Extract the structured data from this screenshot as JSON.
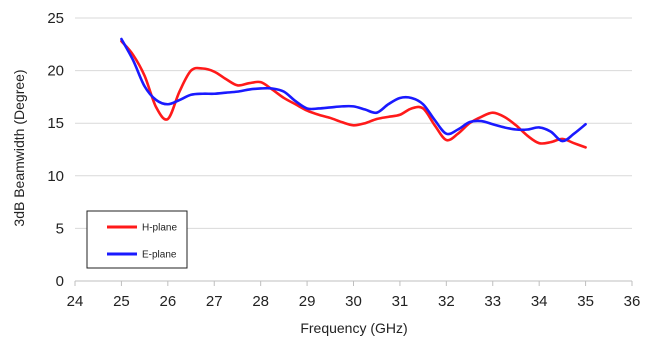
{
  "chart_data": {
    "type": "line",
    "title": "",
    "xlabel": "Frequency (GHz)",
    "ylabel": "3dB Beamwidth (Degree)",
    "xlim": [
      24,
      36
    ],
    "ylim": [
      0,
      25
    ],
    "x_ticks": [
      "24",
      "25",
      "26",
      "27",
      "28",
      "29",
      "30",
      "31",
      "32",
      "33",
      "34",
      "35",
      "36"
    ],
    "y_ticks": [
      "0",
      "5",
      "10",
      "15",
      "20",
      "25"
    ],
    "grid": "horizontal",
    "legend_position": "bottom-left",
    "series": [
      {
        "name": "H-plane",
        "color": "#ff1a1a",
        "x": [
          25,
          25.25,
          25.5,
          25.75,
          26,
          26.25,
          26.5,
          26.75,
          27,
          27.25,
          27.5,
          27.75,
          28,
          28.25,
          28.5,
          28.75,
          29,
          29.25,
          29.5,
          29.75,
          30,
          30.25,
          30.5,
          30.75,
          31,
          31.25,
          31.5,
          31.75,
          32,
          32.25,
          32.5,
          32.75,
          33,
          33.25,
          33.5,
          33.75,
          34,
          34.25,
          34.5,
          34.75,
          35
        ],
        "y": [
          22.8,
          21.5,
          19.5,
          16.5,
          15.4,
          18.0,
          20.0,
          20.2,
          19.9,
          19.2,
          18.6,
          18.8,
          18.9,
          18.2,
          17.4,
          16.8,
          16.2,
          15.8,
          15.5,
          15.1,
          14.8,
          15.0,
          15.4,
          15.6,
          15.8,
          16.4,
          16.4,
          14.8,
          13.4,
          14.0,
          15.0,
          15.6,
          16.0,
          15.6,
          14.8,
          13.8,
          13.1,
          13.2,
          13.5,
          13.1,
          12.7
        ]
      },
      {
        "name": "E-plane",
        "color": "#1a1aff",
        "x": [
          25,
          25.25,
          25.5,
          25.75,
          26,
          26.25,
          26.5,
          26.75,
          27,
          27.25,
          27.5,
          27.75,
          28,
          28.25,
          28.5,
          28.75,
          29,
          29.25,
          29.5,
          29.75,
          30,
          30.25,
          30.5,
          30.75,
          31,
          31.25,
          31.5,
          31.75,
          32,
          32.25,
          32.5,
          32.75,
          33,
          33.25,
          33.5,
          33.75,
          34,
          34.25,
          34.5,
          34.75,
          35
        ],
        "y": [
          23.0,
          21.0,
          18.5,
          17.2,
          16.8,
          17.2,
          17.7,
          17.8,
          17.8,
          17.9,
          18.0,
          18.2,
          18.3,
          18.3,
          18.0,
          17.1,
          16.4,
          16.4,
          16.5,
          16.6,
          16.6,
          16.3,
          16.0,
          16.8,
          17.4,
          17.4,
          16.8,
          15.3,
          14.0,
          14.4,
          15.1,
          15.2,
          14.9,
          14.6,
          14.4,
          14.4,
          14.6,
          14.2,
          13.3,
          14.0,
          14.9
        ]
      }
    ]
  }
}
